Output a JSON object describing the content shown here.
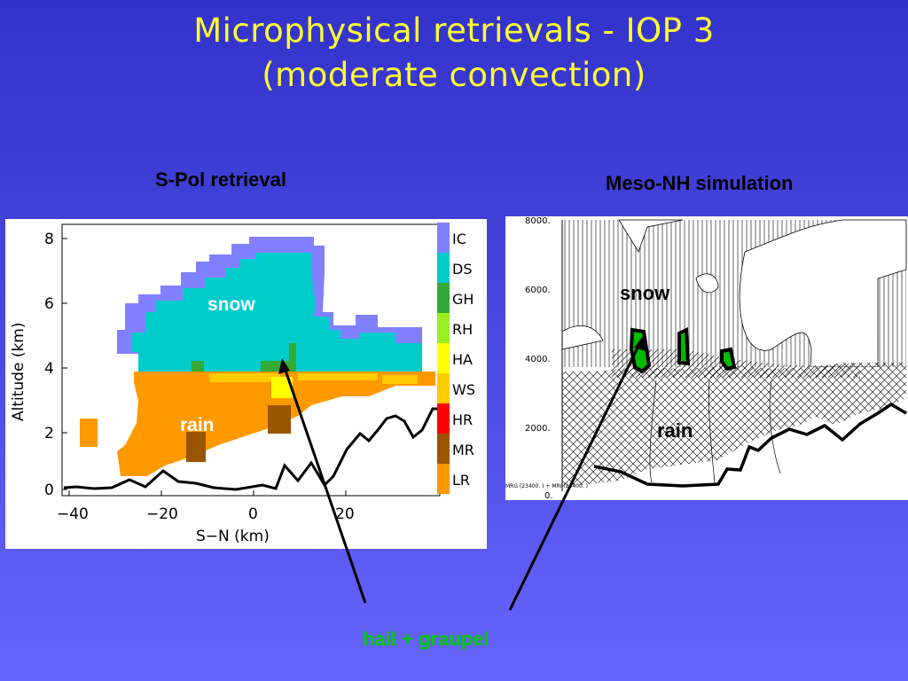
{
  "title": {
    "line1": "Microphysical retrievals -  IOP 3",
    "line2": "(moderate convection)"
  },
  "left_panel": {
    "heading": "S-Pol retrieval",
    "snow_label": "snow",
    "rain_label": "rain",
    "ylabel": "Altitude (km)",
    "xlabel": "S−N (km)",
    "yticks": [
      "0",
      "2",
      "4",
      "6",
      "8"
    ],
    "xticks": [
      "−40",
      "−20",
      "0",
      "20"
    ],
    "legend": [
      {
        "code": "IC",
        "color": "#8080ff"
      },
      {
        "code": "DS",
        "color": "#00cccc"
      },
      {
        "code": "GH",
        "color": "#33aa33"
      },
      {
        "code": "RH",
        "color": "#99ee22"
      },
      {
        "code": "HA",
        "color": "#ffff00"
      },
      {
        "code": "WS",
        "color": "#ffcc00"
      },
      {
        "code": "HR",
        "color": "#ff0000"
      },
      {
        "code": "MR",
        "color": "#995500"
      },
      {
        "code": "LR",
        "color": "#ff9900"
      }
    ]
  },
  "right_panel": {
    "heading": "Meso-NH simulation",
    "snow_label": "snow",
    "rain_label": "rain",
    "yticks": [
      "8000.",
      "6000.",
      "4000.",
      "2000.",
      "0."
    ],
    "footer": "MRG (23400. ) + MRI (23400. )"
  },
  "annotation": {
    "text": "hail + graupel",
    "color": "#00cc00"
  }
}
